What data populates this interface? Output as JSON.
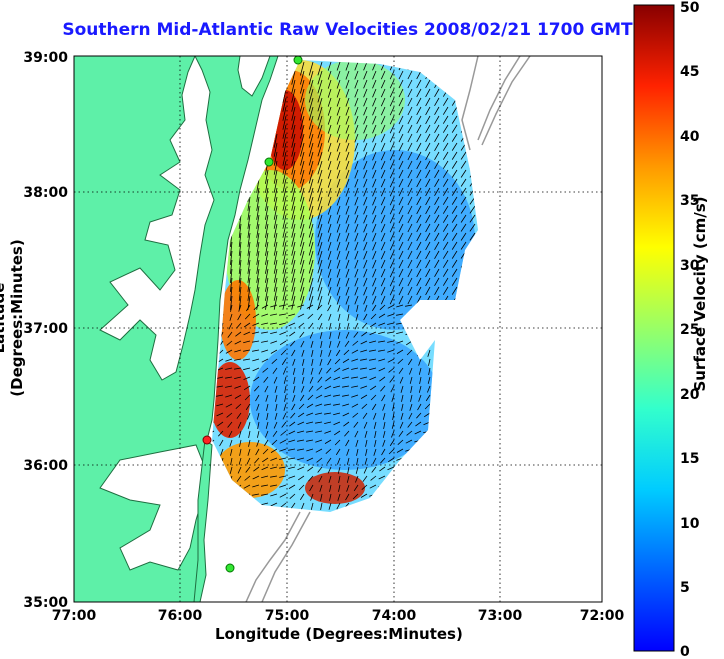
{
  "title": "Southern Mid-Atlantic Raw Velocities 2008/02/21 1700 GMT",
  "x_axis": {
    "label": "Longitude (Degrees:Minutes)",
    "ticks": [
      "77:00",
      "76:00",
      "75:00",
      "74:00",
      "73:00",
      "72:00"
    ]
  },
  "y_axis": {
    "label": "Latitude (Degrees:Minutes)",
    "ticks": [
      "39:00",
      "38:00",
      "37:00",
      "36:00",
      "35:00"
    ]
  },
  "colorbar": {
    "label": "Surface Velocity (cm/s)",
    "ticks": [
      "50",
      "45",
      "40",
      "35",
      "30",
      "25",
      "20",
      "15",
      "10",
      "5",
      "0"
    ],
    "colormap": "jet",
    "range": [
      0,
      50
    ]
  },
  "colors": {
    "title": "#1a1aff",
    "land": "#5ef0a8",
    "water": "#ffffff",
    "arrows": "#000000",
    "station_green": "#33e633",
    "station_red": "#ff2222"
  }
}
